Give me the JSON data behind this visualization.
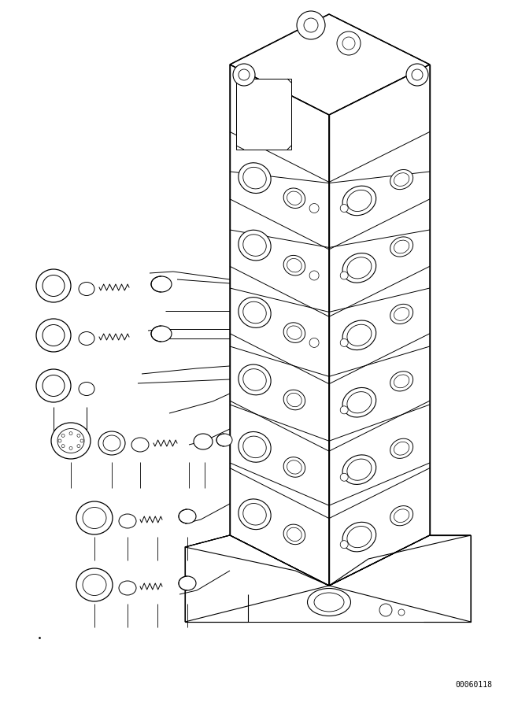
{
  "figure_width": 6.72,
  "figure_height": 9.02,
  "dpi": 100,
  "bg_color": "#ffffff",
  "line_color": "#000000",
  "part_number": "00060118",
  "part_number_fontsize": 7
}
